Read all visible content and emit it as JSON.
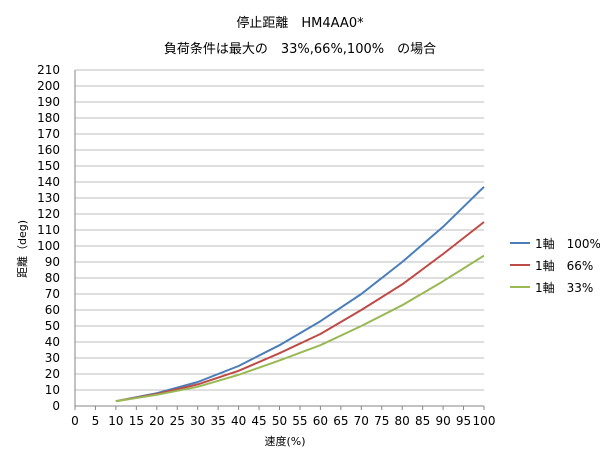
{
  "chart_data": {
    "type": "line",
    "title": "停止距離　HM4AA0*",
    "subtitle": "負荷条件は最大の　33%,66%,100%　の場合",
    "xlabel": "速度(%)",
    "ylabel": "距離（deg)",
    "xlim": [
      0,
      100
    ],
    "ylim": [
      0,
      210
    ],
    "x_ticks": [
      0,
      5,
      10,
      15,
      20,
      25,
      30,
      35,
      40,
      45,
      50,
      55,
      60,
      65,
      70,
      75,
      80,
      85,
      90,
      95,
      100
    ],
    "y_ticks": [
      0,
      10,
      20,
      30,
      40,
      50,
      60,
      70,
      80,
      90,
      100,
      110,
      120,
      130,
      140,
      150,
      160,
      170,
      180,
      190,
      200,
      210
    ],
    "grid": "horizontal",
    "legend_position": "right",
    "x": [
      10,
      20,
      30,
      40,
      50,
      60,
      70,
      80,
      90,
      100
    ],
    "series": [
      {
        "name": "1軸　100%",
        "color": "#4a7ebb",
        "values": [
          3,
          8,
          15,
          25,
          38,
          53,
          70,
          90,
          112,
          137
        ]
      },
      {
        "name": "1軸　66%",
        "color": "#be4b48",
        "values": [
          3,
          7.5,
          13.5,
          22,
          33,
          45,
          60,
          76,
          95,
          115
        ]
      },
      {
        "name": "1軸　33%",
        "color": "#98b954",
        "values": [
          3,
          7,
          12,
          19.5,
          28.5,
          38,
          50,
          63,
          78,
          94
        ]
      }
    ]
  }
}
